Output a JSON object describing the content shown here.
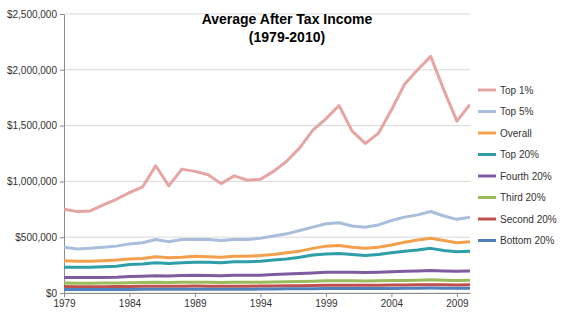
{
  "chart_data": {
    "type": "line",
    "title": "Average After Tax Income",
    "subtitle": "(1979-2010)",
    "x": [
      1979,
      1980,
      1981,
      1982,
      1983,
      1984,
      1985,
      1986,
      1987,
      1988,
      1989,
      1990,
      1991,
      1992,
      1993,
      1994,
      1995,
      1996,
      1997,
      1998,
      1999,
      2000,
      2001,
      2002,
      2003,
      2004,
      2005,
      2006,
      2007,
      2008,
      2009,
      2010
    ],
    "series": [
      {
        "name": "Top 1%",
        "color": "#e6a5a2",
        "values": [
          750000,
          730000,
          735000,
          790000,
          840000,
          900000,
          950000,
          1140000,
          960000,
          1110000,
          1090000,
          1060000,
          980000,
          1050000,
          1010000,
          1020000,
          1090000,
          1180000,
          1300000,
          1460000,
          1560000,
          1680000,
          1450000,
          1340000,
          1430000,
          1640000,
          1870000,
          2000000,
          2120000,
          1820000,
          1540000,
          1690000
        ]
      },
      {
        "name": "Top 5%",
        "color": "#a9bedc",
        "values": [
          410000,
          395000,
          400000,
          410000,
          420000,
          440000,
          450000,
          480000,
          460000,
          480000,
          480000,
          480000,
          470000,
          480000,
          480000,
          490000,
          510000,
          530000,
          560000,
          590000,
          620000,
          630000,
          600000,
          590000,
          610000,
          650000,
          680000,
          700000,
          730000,
          690000,
          660000,
          680000
        ]
      },
      {
        "name": "Overall",
        "color": "#f2a04c",
        "values": [
          290000,
          285000,
          285000,
          290000,
          295000,
          305000,
          310000,
          325000,
          315000,
          320000,
          330000,
          325000,
          320000,
          330000,
          330000,
          335000,
          345000,
          360000,
          375000,
          400000,
          420000,
          425000,
          410000,
          400000,
          410000,
          430000,
          455000,
          475000,
          490000,
          470000,
          450000,
          460000
        ]
      },
      {
        "name": "Top 20%",
        "color": "#2e9fa9",
        "values": [
          230000,
          230000,
          230000,
          235000,
          240000,
          255000,
          260000,
          270000,
          265000,
          270000,
          275000,
          275000,
          270000,
          280000,
          280000,
          285000,
          295000,
          305000,
          320000,
          340000,
          350000,
          355000,
          345000,
          335000,
          345000,
          360000,
          375000,
          385000,
          400000,
          380000,
          370000,
          375000
        ]
      },
      {
        "name": "Fourth 20%",
        "color": "#7f5c9f",
        "values": [
          140000,
          138000,
          138000,
          140000,
          142000,
          147000,
          150000,
          155000,
          153000,
          156000,
          158000,
          157000,
          155000,
          158000,
          158000,
          160000,
          165000,
          170000,
          175000,
          180000,
          185000,
          187000,
          185000,
          183000,
          186000,
          190000,
          195000,
          198000,
          202000,
          198000,
          195000,
          197000
        ]
      },
      {
        "name": "Third 20%",
        "color": "#9cbb5a",
        "values": [
          90000,
          88000,
          88000,
          89000,
          90000,
          92000,
          94000,
          96000,
          95000,
          96000,
          97000,
          96000,
          95000,
          96000,
          96000,
          97000,
          99000,
          101000,
          103000,
          106000,
          109000,
          110000,
          109000,
          108000,
          109000,
          111000,
          113000,
          115000,
          118000,
          115000,
          113000,
          114000
        ]
      },
      {
        "name": "Second 20%",
        "color": "#c0504d",
        "values": [
          58000,
          57000,
          57000,
          57000,
          58000,
          59000,
          60000,
          61000,
          61000,
          61000,
          62000,
          61000,
          60000,
          61000,
          61000,
          62000,
          63000,
          64000,
          65000,
          67000,
          69000,
          70000,
          69000,
          69000,
          70000,
          71000,
          72000,
          73000,
          75000,
          73000,
          72000,
          73000
        ]
      },
      {
        "name": "Bottom 20%",
        "color": "#4f81bd",
        "values": [
          32000,
          31000,
          31000,
          31000,
          32000,
          32000,
          33000,
          34000,
          34000,
          34000,
          34000,
          34000,
          33000,
          34000,
          34000,
          35000,
          36000,
          37000,
          38000,
          39000,
          40000,
          40000,
          40000,
          40000,
          41000,
          41000,
          42000,
          43000,
          44000,
          43000,
          42000,
          43000
        ]
      }
    ],
    "xlim": [
      1979,
      2010
    ],
    "xticks": [
      1979,
      1984,
      1989,
      1994,
      1999,
      2004,
      2009
    ],
    "ylim": [
      0,
      2500000
    ],
    "yticks": [
      {
        "value": 0,
        "label": "$0"
      },
      {
        "value": 500000,
        "label": "$500,000"
      },
      {
        "value": 1000000,
        "label": "$1,000,000"
      },
      {
        "value": 1500000,
        "label": "$1,500,000"
      },
      {
        "value": 2000000,
        "label": "$2,000,000"
      },
      {
        "value": 2500000,
        "label": "$2,500,000"
      }
    ],
    "grid": true,
    "legend": "right"
  }
}
